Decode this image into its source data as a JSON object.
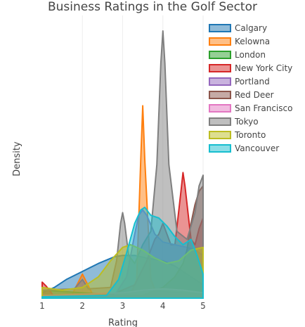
{
  "chart_data": {
    "type": "area",
    "title": "Business Ratings in the Golf Sector",
    "xlabel": "Rating",
    "ylabel": "Density",
    "xlim": [
      1,
      5
    ],
    "ylim": [
      0,
      1.0
    ],
    "x_ticks": [
      1,
      2,
      3,
      4,
      5
    ],
    "x_tick_labels": [
      "1",
      "2",
      "3",
      "4",
      "5"
    ],
    "grid": "vertical",
    "legend_position": "top-right",
    "series": [
      {
        "name": "Calgary",
        "color": "#1f77b4",
        "points": [
          [
            1,
            0.02
          ],
          [
            1.3,
            0.04
          ],
          [
            1.6,
            0.07
          ],
          [
            2.0,
            0.1
          ],
          [
            2.4,
            0.13
          ],
          [
            2.8,
            0.155
          ],
          [
            3.0,
            0.16
          ],
          [
            3.3,
            0.16
          ],
          [
            3.6,
            0.15
          ],
          [
            4.0,
            0.14
          ],
          [
            4.3,
            0.12
          ],
          [
            4.6,
            0.09
          ],
          [
            5,
            0.05
          ]
        ]
      },
      {
        "name": "Kelowna",
        "color": "#ff7f0e",
        "points": [
          [
            1,
            0.01
          ],
          [
            1.75,
            0.015
          ],
          [
            1.9,
            0.06
          ],
          [
            2.0,
            0.09
          ],
          [
            2.1,
            0.06
          ],
          [
            2.25,
            0.015
          ],
          [
            3.2,
            0.015
          ],
          [
            3.35,
            0.07
          ],
          [
            3.45,
            0.52
          ],
          [
            3.5,
            0.72
          ],
          [
            3.55,
            0.52
          ],
          [
            3.7,
            0.07
          ],
          [
            3.85,
            0.015
          ],
          [
            5,
            0.01
          ]
        ]
      },
      {
        "name": "London",
        "color": "#2ca02c",
        "points": [
          [
            1,
            0.03
          ],
          [
            1.5,
            0.025
          ],
          [
            2.0,
            0.02
          ],
          [
            2.5,
            0.015
          ],
          [
            3.0,
            0.02
          ],
          [
            3.5,
            0.03
          ],
          [
            4.0,
            0.025
          ],
          [
            4.5,
            0.02
          ],
          [
            5,
            0.015
          ]
        ]
      },
      {
        "name": "New York City",
        "color": "#d62728",
        "points": [
          [
            1,
            0.06
          ],
          [
            1.1,
            0.045
          ],
          [
            1.3,
            0.005
          ],
          [
            2.6,
            0.005
          ],
          [
            3.3,
            0.05
          ],
          [
            3.6,
            0.14
          ],
          [
            3.8,
            0.22
          ],
          [
            3.9,
            0.24
          ],
          [
            4.0,
            0.28
          ],
          [
            4.1,
            0.24
          ],
          [
            4.2,
            0.2
          ],
          [
            4.3,
            0.2
          ],
          [
            4.45,
            0.4
          ],
          [
            4.5,
            0.47
          ],
          [
            4.55,
            0.42
          ],
          [
            4.7,
            0.22
          ],
          [
            4.8,
            0.2
          ],
          [
            4.9,
            0.26
          ],
          [
            5,
            0.3
          ]
        ]
      },
      {
        "name": "Portland",
        "color": "#9467bd",
        "points": [
          [
            1,
            0.005
          ],
          [
            2.8,
            0.01
          ],
          [
            3.1,
            0.08
          ],
          [
            3.3,
            0.24
          ],
          [
            3.4,
            0.31
          ],
          [
            3.5,
            0.33
          ],
          [
            3.6,
            0.31
          ],
          [
            3.8,
            0.24
          ],
          [
            4.0,
            0.21
          ],
          [
            4.3,
            0.2
          ],
          [
            4.6,
            0.19
          ],
          [
            4.8,
            0.18
          ],
          [
            5,
            0.16
          ]
        ]
      },
      {
        "name": "Red Deer",
        "color": "#8c564b",
        "points": [
          [
            1,
            0.005
          ],
          [
            3.5,
            0.01
          ],
          [
            4.0,
            0.04
          ],
          [
            4.3,
            0.08
          ],
          [
            4.5,
            0.13
          ],
          [
            4.6,
            0.18
          ],
          [
            4.7,
            0.28
          ],
          [
            4.8,
            0.35
          ],
          [
            4.9,
            0.4
          ],
          [
            5,
            0.42
          ]
        ]
      },
      {
        "name": "San Francisco",
        "color": "#e377c2",
        "points": [
          [
            1,
            0.01
          ],
          [
            2.0,
            0.015
          ],
          [
            3.0,
            0.02
          ],
          [
            3.5,
            0.03
          ],
          [
            4.0,
            0.035
          ],
          [
            4.5,
            0.03
          ],
          [
            5,
            0.02
          ]
        ]
      },
      {
        "name": "Tokyo",
        "color": "#7f7f7f",
        "points": [
          [
            1,
            0.03
          ],
          [
            1.8,
            0.035
          ],
          [
            2.0,
            0.07
          ],
          [
            2.15,
            0.035
          ],
          [
            2.7,
            0.04
          ],
          [
            2.85,
            0.14
          ],
          [
            2.95,
            0.28
          ],
          [
            3.0,
            0.32
          ],
          [
            3.05,
            0.28
          ],
          [
            3.15,
            0.16
          ],
          [
            3.3,
            0.13
          ],
          [
            3.5,
            0.2
          ],
          [
            3.7,
            0.25
          ],
          [
            3.85,
            0.5
          ],
          [
            3.95,
            0.88
          ],
          [
            4.0,
            1.0
          ],
          [
            4.05,
            0.88
          ],
          [
            4.15,
            0.5
          ],
          [
            4.35,
            0.25
          ],
          [
            4.6,
            0.22
          ],
          [
            4.8,
            0.32
          ],
          [
            4.9,
            0.42
          ],
          [
            5,
            0.46
          ]
        ]
      },
      {
        "name": "Toronto",
        "color": "#bcbd22",
        "points": [
          [
            1,
            0.04
          ],
          [
            1.5,
            0.03
          ],
          [
            2.0,
            0.04
          ],
          [
            2.4,
            0.08
          ],
          [
            2.7,
            0.14
          ],
          [
            3.0,
            0.19
          ],
          [
            3.2,
            0.2
          ],
          [
            3.5,
            0.18
          ],
          [
            3.8,
            0.15
          ],
          [
            4.1,
            0.13
          ],
          [
            4.4,
            0.14
          ],
          [
            4.7,
            0.18
          ],
          [
            5,
            0.19
          ]
        ]
      },
      {
        "name": "Vancouver",
        "color": "#17becf",
        "points": [
          [
            1,
            0.005
          ],
          [
            2.6,
            0.01
          ],
          [
            2.9,
            0.07
          ],
          [
            3.1,
            0.17
          ],
          [
            3.3,
            0.28
          ],
          [
            3.45,
            0.33
          ],
          [
            3.55,
            0.34
          ],
          [
            3.7,
            0.31
          ],
          [
            3.9,
            0.3
          ],
          [
            4.1,
            0.27
          ],
          [
            4.3,
            0.23
          ],
          [
            4.5,
            0.2
          ],
          [
            4.7,
            0.22
          ],
          [
            4.85,
            0.16
          ],
          [
            5,
            0.09
          ]
        ]
      }
    ]
  }
}
